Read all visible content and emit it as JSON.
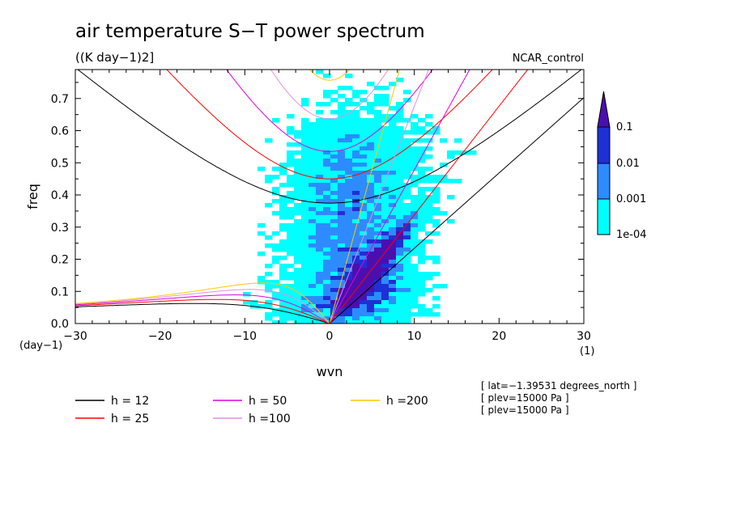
{
  "chart_data": {
    "type": "heatmap",
    "title": "air temperature S−T power spectrum",
    "subtitle": "((K day−1)2]",
    "run_label": "NCAR_control",
    "xlabel": "wvn",
    "ylabel": "freq",
    "x_unit": "(1)",
    "y_unit": "(day−1)",
    "xlim": [
      -30,
      30
    ],
    "ylim": [
      0,
      0.79
    ],
    "xticks": [
      {
        "value": -30,
        "label": "−30"
      },
      {
        "value": -20,
        "label": "−20"
      },
      {
        "value": -10,
        "label": "−10"
      },
      {
        "value": 0,
        "label": "0"
      },
      {
        "value": 10,
        "label": "10"
      },
      {
        "value": 20,
        "label": "20"
      },
      {
        "value": 30,
        "label": "30"
      }
    ],
    "yticks": [
      {
        "value": 0.0,
        "label": "0.0"
      },
      {
        "value": 0.1,
        "label": "0.1"
      },
      {
        "value": 0.2,
        "label": "0.2"
      },
      {
        "value": 0.3,
        "label": "0.3"
      },
      {
        "value": 0.4,
        "label": "0.4"
      },
      {
        "value": 0.5,
        "label": "0.5"
      },
      {
        "value": 0.6,
        "label": "0.6"
      },
      {
        "value": 0.7,
        "label": "0.7"
      }
    ],
    "colorbar": {
      "levels": [
        "1e-04",
        "0.001",
        "0.01",
        "0.1"
      ],
      "colors": [
        "#00ffff",
        "#2e8bff",
        "#1f2fd6",
        "#4b0fb0"
      ]
    },
    "series": [
      {
        "name": "h = 12",
        "h": 12,
        "color": "#000000"
      },
      {
        "name": "h = 25",
        "h": 25,
        "color": "#ff0000"
      },
      {
        "name": "h = 50",
        "h": 50,
        "color": "#e000e0"
      },
      {
        "name": "h =100",
        "h": 100,
        "color": "#e090e0"
      },
      {
        "name": "h =200",
        "h": 200,
        "color": "#ffc800"
      }
    ],
    "annotations": [
      "[ lat=−1.39531 degrees_north ]",
      "[ plev=15000 Pa ]",
      "[ plev=15000 Pa ]"
    ]
  }
}
